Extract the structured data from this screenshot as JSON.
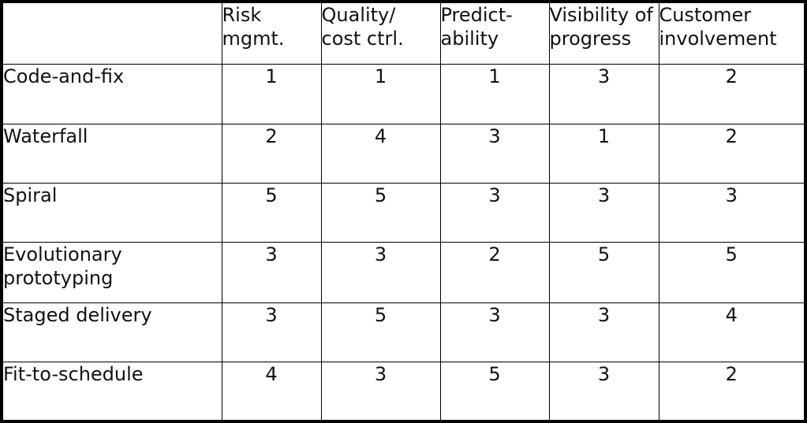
{
  "table": {
    "columns": [
      {
        "line1": "Risk",
        "line2": "mgmt."
      },
      {
        "line1": "Quality/",
        "line2": "cost ctrl."
      },
      {
        "line1": "Predict-",
        "line2": "ability"
      },
      {
        "line1": "Visibility of",
        "line2": "progress"
      },
      {
        "line1": "Customer",
        "line2": "involvement"
      }
    ],
    "rows": [
      {
        "label_line1": "Code-and-fix",
        "label_line2": "",
        "values": [
          "1",
          "1",
          "1",
          "3",
          "2"
        ]
      },
      {
        "label_line1": "Waterfall",
        "label_line2": "",
        "values": [
          "2",
          "4",
          "3",
          "1",
          "2"
        ]
      },
      {
        "label_line1": "Spiral",
        "label_line2": "",
        "values": [
          "5",
          "5",
          "3",
          "3",
          "3"
        ]
      },
      {
        "label_line1": "Evolutionary",
        "label_line2": "prototyping",
        "values": [
          "3",
          "3",
          "2",
          "5",
          "5"
        ]
      },
      {
        "label_line1": "Staged delivery",
        "label_line2": "",
        "values": [
          "3",
          "5",
          "3",
          "3",
          "4"
        ]
      },
      {
        "label_line1": "Fit-to-schedule",
        "label_line2": "",
        "values": [
          "4",
          "3",
          "5",
          "3",
          "2"
        ]
      }
    ]
  }
}
